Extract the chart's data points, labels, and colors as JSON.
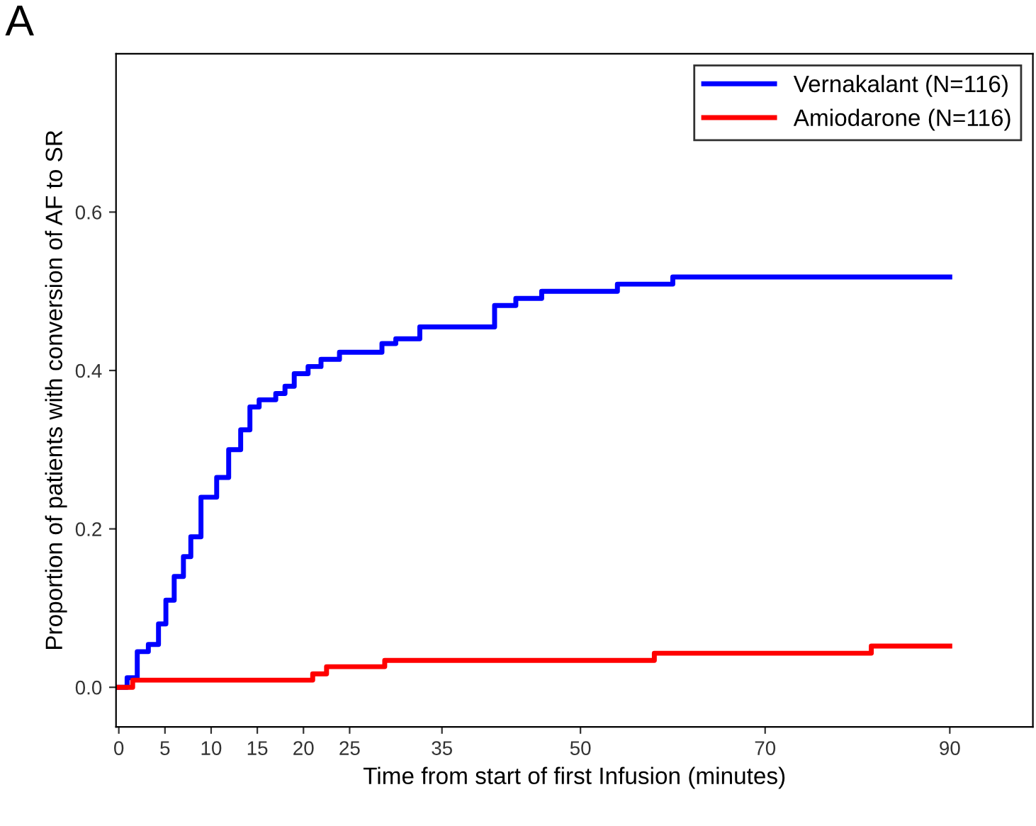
{
  "chart_data": {
    "type": "step",
    "xlabel": "Time from start of first Infusion (minutes)",
    "ylabel": "Proportion of patients with conversion of AF to SR",
    "annotations": [
      "A"
    ],
    "xlim": [
      -0.3,
      99
    ],
    "ylim": [
      -0.05,
      0.8
    ],
    "xticks": [
      0,
      5,
      10,
      15,
      20,
      25,
      35,
      50,
      70,
      90
    ],
    "yticks": [
      {
        "value": 0,
        "label": "0.0"
      },
      {
        "value": 0.2,
        "label": "0.2"
      },
      {
        "value": 0.4,
        "label": "0.4"
      },
      {
        "value": 0.6,
        "label": "0.6"
      }
    ],
    "legend": "top right",
    "grid": false,
    "marker": "none",
    "line_style": "solid",
    "series": [
      {
        "name": "Vernakalant (N=116)",
        "color": "#0000ff",
        "x": [
          0,
          0.9,
          2.0,
          3.2,
          4.3,
          5.1,
          6.0,
          7.0,
          7.8,
          8.9,
          10.6,
          11.9,
          13.2,
          14.2,
          15.2,
          17.0,
          18.0,
          19.0,
          20.5,
          21.9,
          23.9,
          28.5,
          30.0,
          32.6,
          40.7,
          43.0,
          45.8,
          54.0,
          60.0,
          90.0
        ],
        "values": [
          0,
          0.012,
          0.045,
          0.054,
          0.08,
          0.11,
          0.14,
          0.165,
          0.19,
          0.24,
          0.265,
          0.3,
          0.325,
          0.354,
          0.363,
          0.371,
          0.38,
          0.396,
          0.405,
          0.414,
          0.423,
          0.434,
          0.44,
          0.455,
          0.482,
          0.491,
          0.5,
          0.509,
          0.518,
          0.518
        ]
      },
      {
        "name": "Amiodarone (N=116)",
        "color": "#ff0000",
        "x": [
          0,
          1.5,
          21.0,
          22.5,
          28.8,
          58.0,
          81.5,
          90.0
        ],
        "values": [
          0,
          0.009,
          0.017,
          0.026,
          0.034,
          0.043,
          0.052,
          0.052
        ]
      }
    ]
  }
}
